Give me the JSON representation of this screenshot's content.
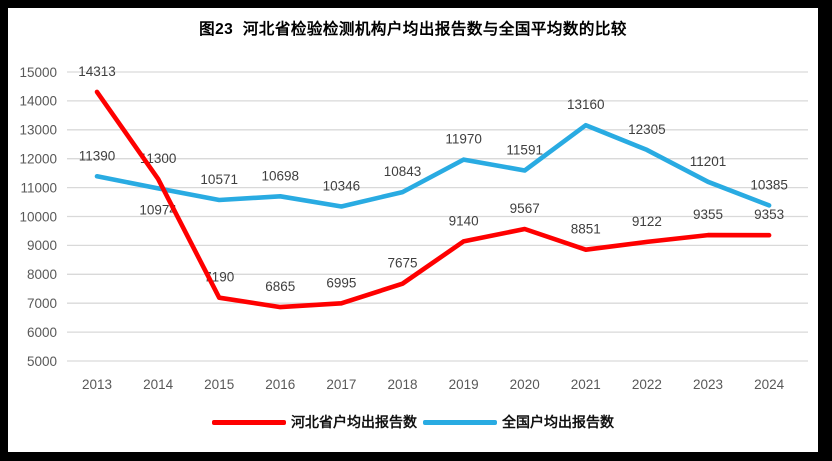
{
  "chart_data": {
    "type": "line",
    "title": "图23  河北省检验检测机构户均出报告数与全国平均数的比较",
    "categories": [
      "2013",
      "2014",
      "2015",
      "2016",
      "2017",
      "2018",
      "2019",
      "2020",
      "2021",
      "2022",
      "2023",
      "2024"
    ],
    "series": [
      {
        "name": "河北省户均出报告数",
        "color": "#fe0000",
        "values": [
          14313,
          11300,
          7190,
          6865,
          6995,
          7675,
          9140,
          9567,
          8851,
          9122,
          9355,
          9353
        ]
      },
      {
        "name": "全国户均出报告数",
        "color": "#29abe2",
        "values": [
          11390,
          10974,
          10571,
          10698,
          10346,
          10843,
          11970,
          11591,
          13160,
          12305,
          11201,
          10385
        ]
      }
    ],
    "xlabel": "",
    "ylabel": "",
    "ylim": [
      5000,
      15000
    ],
    "ytick_interval": 1000,
    "grid": true,
    "data_labels": true,
    "legend_position": "bottom",
    "colors": {
      "gridline": "#d9d9d9",
      "axis_text": "#595959",
      "data_label_text": "#3f3f3f",
      "title_text": "#000000",
      "frame": "#000000",
      "background": "#ffffff"
    }
  }
}
